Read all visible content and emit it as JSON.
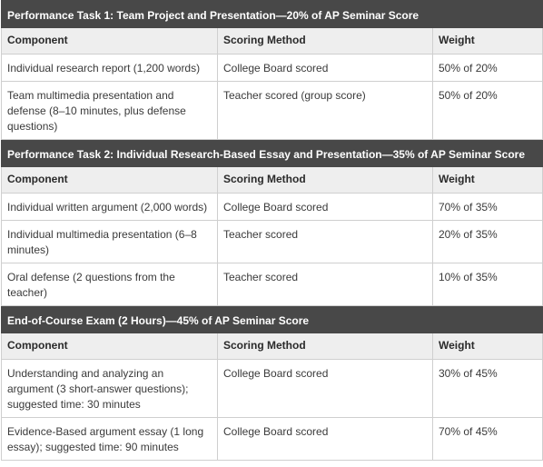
{
  "sections": [
    {
      "title": "Performance Task 1: Team Project and Presentation—20% of AP Seminar Score",
      "headers": [
        "Component",
        "Scoring Method",
        "Weight"
      ],
      "rows": [
        {
          "component": "Individual research report (1,200 words)",
          "method": "College Board scored",
          "weight": "50% of 20%"
        },
        {
          "component": "Team multimedia presentation and defense (8–10 minutes, plus defense questions)",
          "method": "Teacher scored (group score)",
          "weight": "50% of 20%"
        }
      ]
    },
    {
      "title": "Performance Task 2: Individual Research-Based Essay and Presentation—35% of AP Seminar Score",
      "headers": [
        "Component",
        "Scoring Method",
        "Weight"
      ],
      "rows": [
        {
          "component": "Individual written argument (2,000 words)",
          "method": "College Board scored",
          "weight": "70% of 35%"
        },
        {
          "component": "Individual multimedia presentation (6–8 minutes)",
          "method": "Teacher scored",
          "weight": "20% of 35%"
        },
        {
          "component": "Oral defense (2 questions from the teacher)",
          "method": "Teacher scored",
          "weight": "10% of 35%"
        }
      ]
    },
    {
      "title": "End-of-Course Exam (2 Hours)—45% of AP Seminar Score",
      "headers": [
        "Component",
        "Scoring Method",
        "Weight"
      ],
      "rows": [
        {
          "component": "Understanding and analyzing an argument (3 short-answer questions); suggested time: 30 minutes",
          "method": "College Board scored",
          "weight": "30% of 45%"
        },
        {
          "component": "Evidence-Based argument essay (1 long essay); suggested time: 90 minutes",
          "method": "College Board scored",
          "weight": "70% of 45%"
        }
      ]
    }
  ]
}
